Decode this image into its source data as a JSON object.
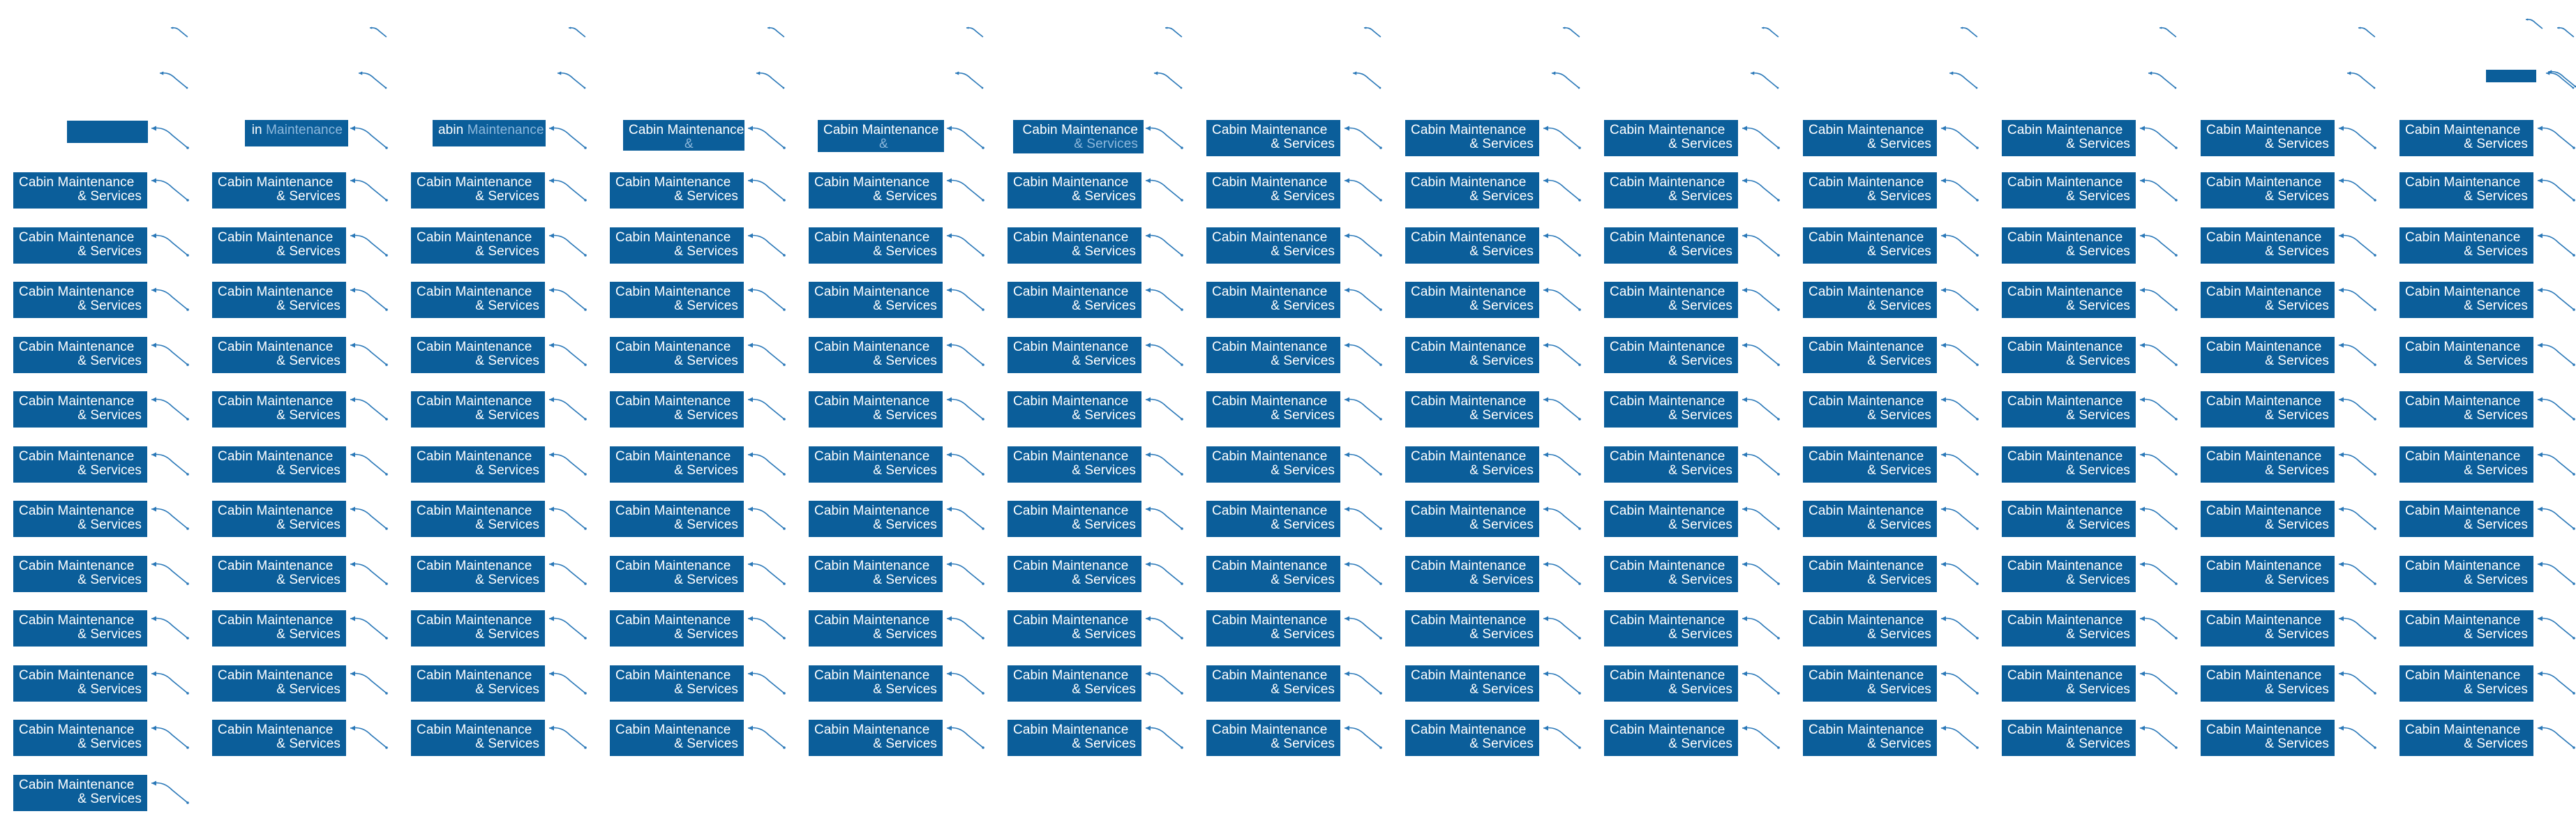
{
  "card": {
    "word_a": "Cabin",
    "word_b": "Maintenance",
    "line2": "& Services"
  },
  "fragments": {
    "in": "in",
    "abin": "abin",
    "amp": "&"
  },
  "colors": {
    "background": "#ffffff",
    "card_fill": "#0b5e9a",
    "card_text": "#ffffff",
    "faded_text": "#8db8dc",
    "connector": "#2a78b8"
  },
  "icons": {
    "connector": "arrow-connector-icon",
    "arrowhead": "arrowhead-icon"
  }
}
